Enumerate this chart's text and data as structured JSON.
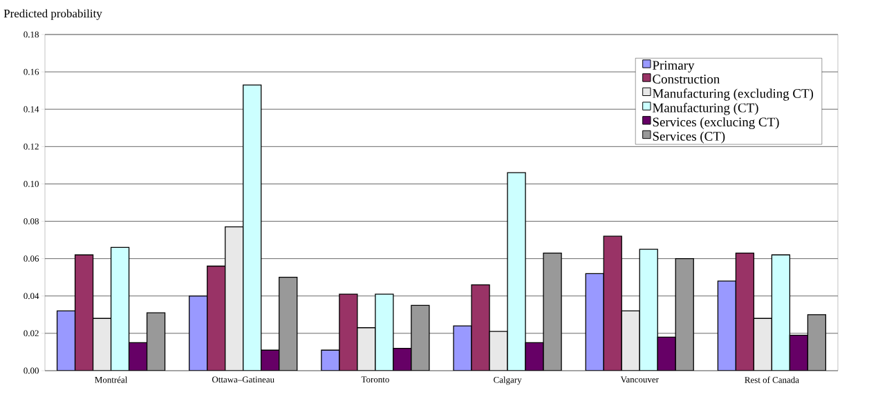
{
  "chart_data": {
    "type": "bar",
    "ylabel": "Predicted probability",
    "categories": [
      "Montréal",
      "Ottawa–Gatineau",
      "Toronto",
      "Calgary",
      "Vancouver",
      "Rest of Canada"
    ],
    "series": [
      {
        "name": "Primary",
        "color": "#9999ff",
        "values": [
          0.032,
          0.04,
          0.011,
          0.024,
          0.052,
          0.048
        ]
      },
      {
        "name": "Construction",
        "color": "#993366",
        "values": [
          0.062,
          0.056,
          0.041,
          0.046,
          0.072,
          0.063
        ]
      },
      {
        "name": "Manufacturing (excluding CT)",
        "color": "#e8e8e8",
        "values": [
          0.028,
          0.077,
          0.023,
          0.021,
          0.032,
          0.028
        ]
      },
      {
        "name": "Manufacturing (CT)",
        "color": "#ccffff",
        "values": [
          0.066,
          0.153,
          0.041,
          0.106,
          0.065,
          0.062
        ]
      },
      {
        "name": "Services (exclucing CT)",
        "color": "#660066",
        "values": [
          0.015,
          0.011,
          0.012,
          0.015,
          0.018,
          0.019
        ]
      },
      {
        "name": "Services (CT)",
        "color": "#999999",
        "values": [
          0.031,
          0.05,
          0.035,
          0.063,
          0.06,
          0.03
        ]
      }
    ],
    "ylim": [
      0,
      0.18
    ],
    "yticks": [
      {
        "value": 0,
        "label": "0.00"
      },
      {
        "value": 0.02,
        "label": "0.02"
      },
      {
        "value": 0.04,
        "label": "0.04"
      },
      {
        "value": 0.06,
        "label": "0.06"
      },
      {
        "value": 0.08,
        "label": "0.08"
      },
      {
        "value": 0.1,
        "label": "0.10"
      },
      {
        "value": 0.12,
        "label": "0.12"
      },
      {
        "value": 0.14,
        "label": "0.14"
      },
      {
        "value": 0.16,
        "label": "0.16"
      },
      {
        "value": 0.18,
        "label": "0.18"
      }
    ],
    "grid": "y",
    "legend": "top right"
  }
}
